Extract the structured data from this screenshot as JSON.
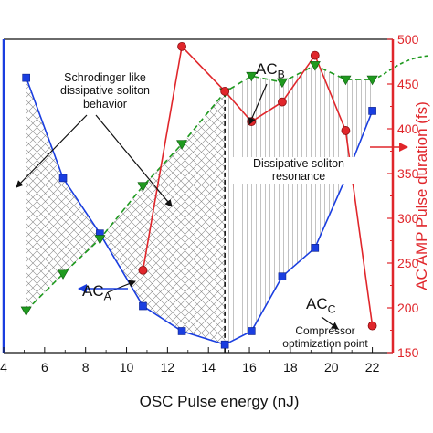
{
  "chart_data": {
    "type": "line",
    "title": "",
    "xlabel": "OSC Pulse energy (nJ)",
    "ylabel_right": "AC AMP Pulse duration (fs)",
    "xlim": [
      4,
      23
    ],
    "x_ticks": [
      4,
      6,
      8,
      10,
      12,
      14,
      16,
      18,
      20,
      22
    ],
    "y_right_lim": [
      150,
      500
    ],
    "y_right_ticks": [
      150,
      200,
      250,
      300,
      350,
      400,
      450,
      500
    ],
    "left_axis_range": [
      150,
      500
    ],
    "grid": false,
    "legend": "none",
    "colors": {
      "blue": "#1a3ee0",
      "green": "#1f9a1f",
      "red": "#e0262b",
      "axis": "#111111"
    },
    "series": [
      {
        "color": "blue",
        "marker": "square",
        "linestyle": "solid",
        "axis": "left",
        "x": [
          5.1,
          6.9,
          8.7,
          10.8,
          12.7,
          14.8,
          16.1,
          17.6,
          19.2,
          20.7,
          22.0
        ],
        "y": [
          457,
          345,
          283,
          202,
          174,
          159,
          174,
          235,
          267,
          345,
          420
        ]
      },
      {
        "color": "green",
        "marker": "triangle-down",
        "linestyle": "dashed",
        "axis": "left",
        "x": [
          5.1,
          6.9,
          8.7,
          10.8,
          12.7,
          14.8,
          16.1,
          17.6,
          19.2,
          20.7,
          22.0
        ],
        "y": [
          197,
          238,
          277,
          336,
          383,
          441,
          459,
          452,
          471,
          455,
          455
        ]
      },
      {
        "color": "red",
        "marker": "circle",
        "linestyle": "solid",
        "axis": "right",
        "x": [
          10.8,
          12.7,
          14.8,
          16.1,
          17.6,
          19.2,
          20.7,
          22.0
        ],
        "y": [
          242,
          492,
          442,
          408,
          430,
          482,
          398,
          180
        ]
      }
    ],
    "annotations": {
      "region_left_line1": "Schrodinger like",
      "region_left_line2": "dissipative soliton",
      "region_left_line3": "behavior",
      "region_right_line1": "Dissipative soliton",
      "region_right_line2": "resonance",
      "ac_a_main": "AC",
      "ac_a_sub": "A",
      "ac_b_main": "AC",
      "ac_b_sub": "B",
      "ac_c_main": "AC",
      "ac_c_sub": "C",
      "compressor_line1": "Compressor",
      "compressor_line2": "optimization point"
    }
  }
}
